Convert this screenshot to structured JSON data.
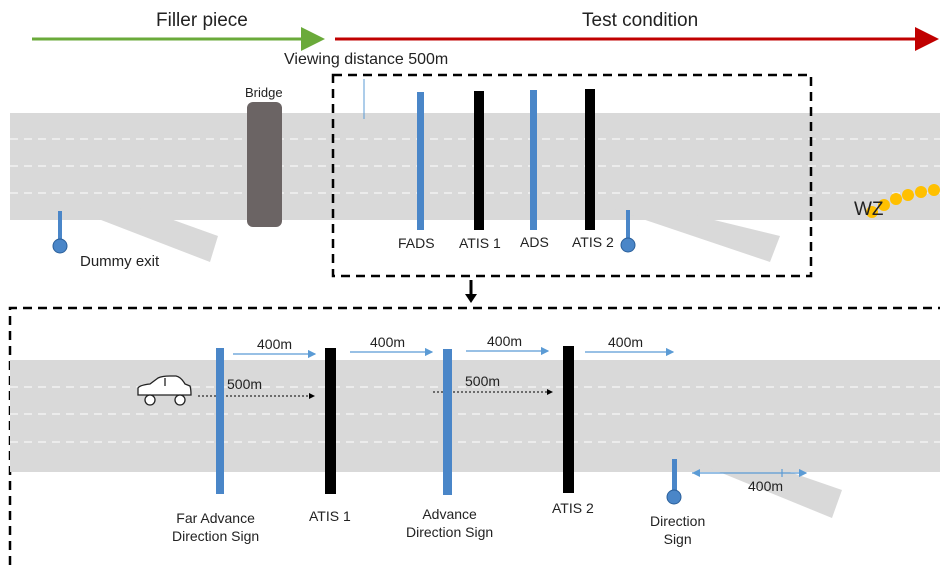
{
  "header": {
    "filler_label": "Filler piece",
    "test_label": "Test condition"
  },
  "top": {
    "viewing_distance": "Viewing distance 500m",
    "bridge": "Bridge",
    "dummy_exit": "Dummy exit",
    "signs": [
      "FADS",
      "ATIS 1",
      "ADS",
      "ATIS 2"
    ],
    "work_zone": "WZ"
  },
  "detail": {
    "spacing": [
      "400m",
      "400m",
      "400m",
      "400m"
    ],
    "visibility": [
      "500m",
      "500m"
    ],
    "exit_length": "400m",
    "signs": {
      "fads": "Far Advance\nDirection Sign",
      "atis1": "ATIS 1",
      "ads": "Advance\nDirection Sign",
      "atis2": "ATIS 2",
      "direction": "Direction\nSign"
    }
  },
  "colors": {
    "green_arrow": "#6aaa3a",
    "red_arrow": "#c00000",
    "road": "#d9d9d9",
    "blue_sign": "#4a86c8",
    "black_sign": "#000000",
    "bridge": "#6b6464",
    "work_zone_cone": "#ffc000"
  }
}
